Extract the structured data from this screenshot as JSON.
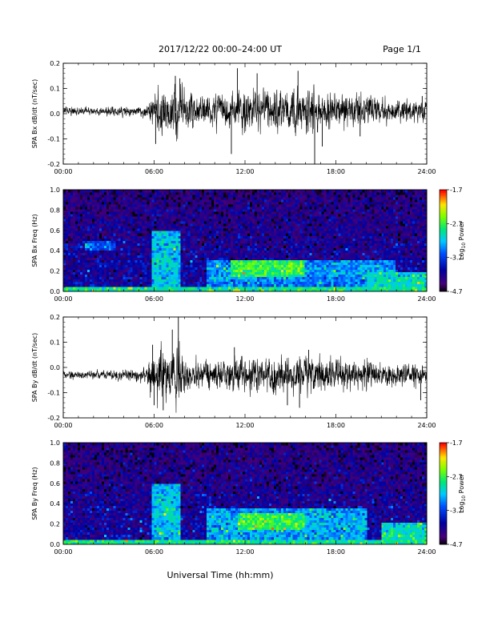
{
  "header": {
    "title": "2017/12/22  00:00–24:00 UT",
    "page": "Page 1/1"
  },
  "footer": {
    "xlabel": "Universal Time (hh:mm)"
  },
  "colorbar": {
    "ticks": [
      "-1.7",
      "-2.7",
      "-3.7",
      "-4.7"
    ],
    "label_prefix": "Log",
    "label_sub": "10",
    "label_suffix": " Power"
  },
  "chart_data": [
    {
      "type": "line",
      "ylabel": "SPA Bx dB/dt (nT/sec)",
      "xlim": [
        0,
        24
      ],
      "ylim": [
        -0.2,
        0.2
      ],
      "xticks": [
        "00:00",
        "06:00",
        "12:00",
        "18:00",
        "24:00"
      ],
      "yticks": [
        "0.2",
        "0.1",
        "0.0",
        "-0.1",
        "-0.2"
      ],
      "baseline": 0.01,
      "envelope": {
        "hours": [
          0,
          2,
          3.5,
          5.5,
          5.8,
          6.5,
          7,
          7.5,
          8,
          9,
          11,
          13,
          15,
          16.5,
          18,
          20,
          22,
          24
        ],
        "amplitude": [
          0.012,
          0.012,
          0.014,
          0.015,
          0.06,
          0.07,
          0.06,
          0.085,
          0.06,
          0.045,
          0.05,
          0.06,
          0.06,
          0.065,
          0.05,
          0.045,
          0.03,
          0.03
        ]
      },
      "spikes": [
        {
          "t": 7.4,
          "v": 0.15
        },
        {
          "t": 7.7,
          "v": 0.14
        },
        {
          "t": 6.1,
          "v": -0.12
        },
        {
          "t": 11.5,
          "v": 0.18
        },
        {
          "t": 11.1,
          "v": -0.16
        },
        {
          "t": 12.8,
          "v": 0.16
        },
        {
          "t": 16.6,
          "v": -0.22
        },
        {
          "t": 15.5,
          "v": 0.17
        },
        {
          "t": 17.1,
          "v": -0.13
        },
        {
          "t": 19.6,
          "v": -0.09
        },
        {
          "t": 23.7,
          "v": 0.07
        }
      ]
    },
    {
      "type": "heatmap",
      "ylabel": "SPA Bx Freq (Hz)",
      "xlim": [
        0,
        24
      ],
      "ylim": [
        0,
        1.0
      ],
      "zlim": [
        -4.7,
        -1.7
      ],
      "xticks": [
        "00:00",
        "06:00",
        "12:00",
        "18:00",
        "24:00"
      ],
      "yticks": [
        "1.0",
        "0.8",
        "0.6",
        "0.4",
        "0.2",
        "0.0"
      ],
      "background_level": -4.1,
      "features": [
        {
          "t0": 0,
          "t1": 24,
          "f0": 0,
          "f1": 0.05,
          "level": -2.9
        },
        {
          "t0": 5.8,
          "t1": 7.8,
          "f0": 0,
          "f1": 0.6,
          "level": -3.2
        },
        {
          "t0": 9.5,
          "t1": 22,
          "f0": 0.05,
          "f1": 0.32,
          "level": -3.4
        },
        {
          "t0": 11,
          "t1": 16,
          "f0": 0.15,
          "f1": 0.3,
          "level": -2.7
        },
        {
          "t0": 20,
          "t1": 24,
          "f0": 0.0,
          "f1": 0.2,
          "level": -3.1
        },
        {
          "t0": 1.5,
          "t1": 3.5,
          "f0": 0.4,
          "f1": 0.5,
          "level": -3.6
        }
      ]
    },
    {
      "type": "line",
      "ylabel": "SPA By dB/dt (nT/sec)",
      "xlim": [
        0,
        24
      ],
      "ylim": [
        -0.2,
        0.2
      ],
      "xticks": [
        "00:00",
        "06:00",
        "12:00",
        "18:00",
        "24:00"
      ],
      "yticks": [
        "0.2",
        "0.1",
        "0.0",
        "-0.1",
        "-0.2"
      ],
      "baseline": -0.03,
      "envelope": {
        "hours": [
          0,
          2,
          3.5,
          5.5,
          5.8,
          6.5,
          7,
          7.5,
          8,
          9,
          11,
          13,
          15,
          16.5,
          18,
          20,
          22,
          24
        ],
        "amplitude": [
          0.012,
          0.012,
          0.014,
          0.02,
          0.07,
          0.08,
          0.06,
          0.09,
          0.055,
          0.045,
          0.045,
          0.05,
          0.055,
          0.055,
          0.045,
          0.04,
          0.03,
          0.03
        ]
      },
      "spikes": [
        {
          "t": 7.6,
          "v": 0.2
        },
        {
          "t": 7.2,
          "v": 0.15
        },
        {
          "t": 5.9,
          "v": 0.09
        },
        {
          "t": 6.6,
          "v": -0.17
        },
        {
          "t": 6.0,
          "v": -0.15
        },
        {
          "t": 11.3,
          "v": 0.08
        },
        {
          "t": 15.6,
          "v": -0.16
        },
        {
          "t": 14.8,
          "v": -0.15
        },
        {
          "t": 16.2,
          "v": 0.07
        },
        {
          "t": 23.6,
          "v": -0.13
        }
      ]
    },
    {
      "type": "heatmap",
      "ylabel": "SPA By Freq (Hz)",
      "xlim": [
        0,
        24
      ],
      "ylim": [
        0,
        1.0
      ],
      "zlim": [
        -4.7,
        -1.7
      ],
      "xticks": [
        "00:00",
        "06:00",
        "12:00",
        "18:00",
        "24:00"
      ],
      "yticks": [
        "1.0",
        "0.8",
        "0.6",
        "0.4",
        "0.2",
        "0.0"
      ],
      "background_level": -4.1,
      "features": [
        {
          "t0": 0,
          "t1": 24,
          "f0": 0,
          "f1": 0.05,
          "level": -2.9
        },
        {
          "t0": 5.8,
          "t1": 7.8,
          "f0": 0,
          "f1": 0.6,
          "level": -3.2
        },
        {
          "t0": 9.5,
          "t1": 20,
          "f0": 0.05,
          "f1": 0.35,
          "level": -3.3
        },
        {
          "t0": 11.5,
          "t1": 16,
          "f0": 0.15,
          "f1": 0.3,
          "level": -2.7
        },
        {
          "t0": 21,
          "t1": 24,
          "f0": 0.0,
          "f1": 0.22,
          "level": -3.0
        }
      ]
    }
  ]
}
